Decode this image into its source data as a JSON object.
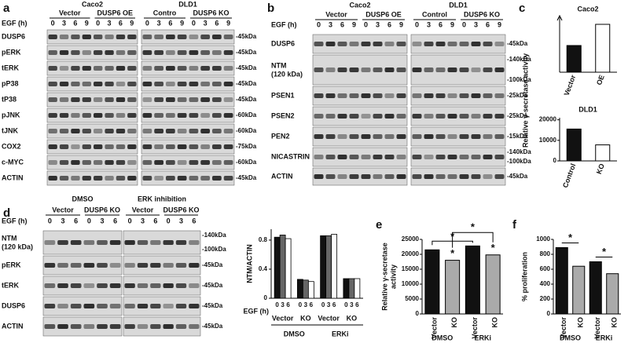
{
  "panels": {
    "a": {
      "label": "a",
      "cell_lines": [
        "Caco2",
        "DLD1"
      ],
      "groups": [
        "Vector",
        "DUSP6 OE",
        "Contro",
        "DUSP6 KO"
      ],
      "time_label": "EGF (h)",
      "times": [
        0,
        3,
        6,
        9
      ],
      "rows": [
        {
          "name": "DUSP6",
          "markers": [
            "-45kDa"
          ]
        },
        {
          "name": "pERK",
          "markers": [
            "-45kDa"
          ]
        },
        {
          "name": "tERK",
          "markers": [
            "-45kDa"
          ]
        },
        {
          "name": "pP38",
          "markers": [
            "-45kDa"
          ]
        },
        {
          "name": "tP38",
          "markers": [
            "-45kDa"
          ]
        },
        {
          "name": "pJNK",
          "markers": [
            "-60kDa"
          ]
        },
        {
          "name": "tJNK",
          "markers": [
            "-60kDa"
          ]
        },
        {
          "name": "COX2",
          "markers": [
            "-75kDa"
          ]
        },
        {
          "name": "c-MYC",
          "markers": [
            "-60kDa"
          ]
        },
        {
          "name": "ACTIN",
          "markers": [
            "-45kDa"
          ]
        }
      ]
    },
    "b": {
      "label": "b",
      "cell_lines": [
        "Caco2",
        "DLD1"
      ],
      "groups": [
        "Vector",
        "DUSP6 OE",
        "Control",
        "DUSP6 KO"
      ],
      "time_label": "EGF (h)",
      "times": [
        0,
        3,
        6,
        9
      ],
      "rows": [
        {
          "name": "DUSP6",
          "markers": [
            "-45kDa"
          ]
        },
        {
          "name": "NTM",
          "sub": "(120 kDa)",
          "markers": [
            "-140kDa",
            "-100kDa"
          ]
        },
        {
          "name": "PSEN1",
          "markers": [
            "-25kDa"
          ]
        },
        {
          "name": "PSEN2",
          "markers": [
            "-25kDa"
          ]
        },
        {
          "name": "PEN2",
          "markers": [
            "-15kDa"
          ]
        },
        {
          "name": "NICASTRIN",
          "markers": [
            "-140kDa",
            "-100kDa"
          ]
        },
        {
          "name": "ACTIN",
          "markers": [
            "-45kDa"
          ]
        }
      ]
    },
    "c": {
      "label": "c",
      "y_label": "Relative γ-secretase activity",
      "charts": [
        {
          "type": "bar",
          "title": "Caco2",
          "categories": [
            "Vector",
            "OE"
          ],
          "values": [
            10200,
            18300
          ],
          "colors": [
            "#111111",
            "#ffffff"
          ],
          "ylim": [
            0,
            21000
          ]
        },
        {
          "type": "bar",
          "title": "DLD1",
          "categories": [
            "Control",
            "KO"
          ],
          "values": [
            15500,
            7800
          ],
          "colors": [
            "#111111",
            "#ffffff"
          ],
          "ylim": [
            0,
            21000
          ],
          "yticks": [
            0,
            10000,
            20000
          ]
        }
      ]
    },
    "d": {
      "label": "d",
      "treatments": [
        "DMSO",
        "ERK inhibition"
      ],
      "groups": [
        "Vector",
        "DUSP6 KO",
        "Vector",
        "DUSP6 KO"
      ],
      "time_label": "EGF (h)",
      "times": [
        0,
        3,
        6
      ],
      "rows": [
        {
          "name": "NTM",
          "sub": "(120 kDa)",
          "markers": [
            "-140kDa",
            "-100kDa"
          ]
        },
        {
          "name": "pERK",
          "markers": [
            "-45kDa"
          ]
        },
        {
          "name": "tERK",
          "markers": [
            "-45kDa"
          ]
        },
        {
          "name": "DUSP6",
          "markers": [
            "-45kDa"
          ]
        },
        {
          "name": "ACTIN",
          "markers": [
            "-45kDa"
          ]
        }
      ],
      "chart": {
        "type": "bar",
        "y_label": "NTM/ACTIN",
        "x_label": "EGF (h)",
        "times": [
          0,
          3,
          6
        ],
        "groups": [
          "Vector",
          "KO",
          "Vector",
          "KO"
        ],
        "conditions": [
          "DMSO",
          "ERKi"
        ],
        "values": [
          [
            0.84,
            0.87,
            0.82
          ],
          [
            0.26,
            0.25,
            0.23
          ],
          [
            0.86,
            0.86,
            0.88
          ],
          [
            0.27,
            0.27,
            0.27
          ]
        ],
        "colors": [
          "#111111",
          "#666666",
          "#ffffff"
        ],
        "ylim": [
          0,
          0.95
        ],
        "yticks": [
          0,
          0.4,
          0.8
        ]
      }
    },
    "e": {
      "label": "e",
      "chart": {
        "type": "bar",
        "y_label": [
          "Relative γ-secretase",
          "activity"
        ],
        "categories": [
          "Vector",
          "KO",
          "Vector",
          "KO"
        ],
        "groups": [
          "DMSO",
          "ERKi"
        ],
        "values": [
          21500,
          18000,
          22800,
          19800
        ],
        "colors": [
          "#111111",
          "#aaaaaa",
          "#111111",
          "#aaaaaa"
        ],
        "ylim": [
          0,
          25000
        ],
        "yticks": [
          0,
          5000,
          10000,
          15000,
          20000,
          25000
        ],
        "annotations": [
          "*",
          "*",
          "*",
          "*"
        ]
      }
    },
    "f": {
      "label": "f",
      "chart": {
        "type": "bar",
        "y_label": "% proliferation",
        "categories": [
          "Vector",
          "KO",
          "Vector",
          "KO"
        ],
        "groups": [
          "DMSO",
          "ERKi"
        ],
        "values": [
          890,
          640,
          700,
          540
        ],
        "colors": [
          "#111111",
          "#aaaaaa",
          "#111111",
          "#aaaaaa"
        ],
        "ylim": [
          0,
          1000
        ],
        "yticks": [
          0,
          200,
          400,
          600,
          800,
          1000
        ],
        "annotations": [
          "*",
          "*"
        ]
      }
    }
  }
}
